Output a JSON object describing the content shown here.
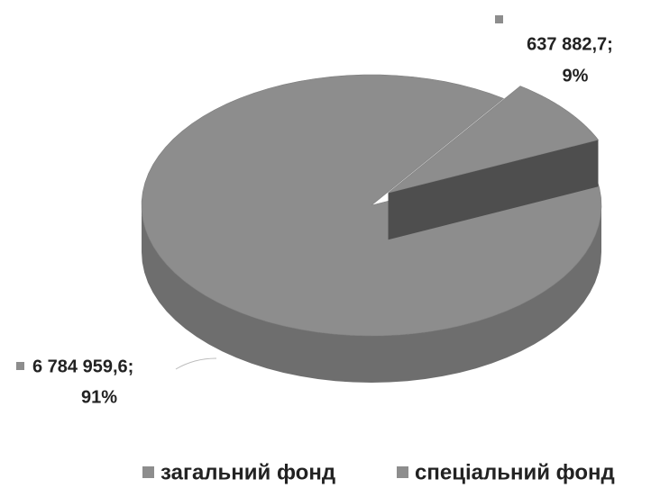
{
  "chart_data": {
    "type": "pie3d",
    "categories": [
      "загальний фонд",
      "спеціальний фонд"
    ],
    "values": [
      6784959.6,
      637882.7
    ],
    "value_labels": [
      "6 784 959,6;",
      "637 882,7;"
    ],
    "percents": [
      91,
      9
    ],
    "percent_labels": [
      "91%",
      "9%"
    ],
    "colors": [
      "#8d8d8d",
      "#8d8d8d"
    ],
    "legend": "bottom"
  }
}
